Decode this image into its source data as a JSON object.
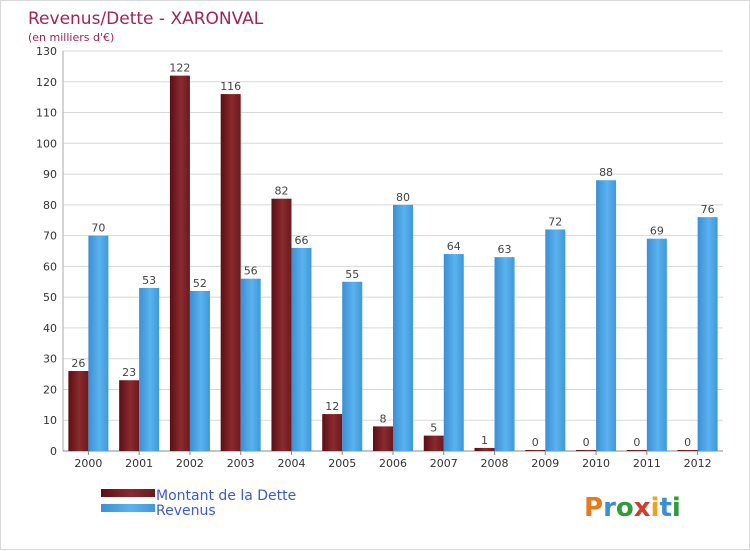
{
  "chart_data": {
    "type": "bar",
    "title": "Revenus/Dette - XARONVAL",
    "subtitle": "(en milliers d'€)",
    "categories": [
      "2000",
      "2001",
      "2002",
      "2003",
      "2004",
      "2005",
      "2006",
      "2007",
      "2008",
      "2009",
      "2010",
      "2011",
      "2012"
    ],
    "series": [
      {
        "name": "Montant de la Dette",
        "color": "#7a1f23",
        "values": [
          26,
          23,
          122,
          116,
          82,
          12,
          8,
          5,
          1,
          0,
          0,
          0,
          0
        ]
      },
      {
        "name": "Revenus",
        "color": "#4aa3e3",
        "values": [
          70,
          53,
          52,
          56,
          66,
          55,
          80,
          64,
          63,
          72,
          88,
          69,
          76
        ]
      }
    ],
    "ylim": [
      0,
      130
    ],
    "yticks": [
      0,
      10,
      20,
      30,
      40,
      50,
      60,
      70,
      80,
      90,
      100,
      110,
      120,
      130
    ],
    "grid": true,
    "legend_position": "bottom-left"
  },
  "watermark": {
    "text": "Proxiti"
  }
}
